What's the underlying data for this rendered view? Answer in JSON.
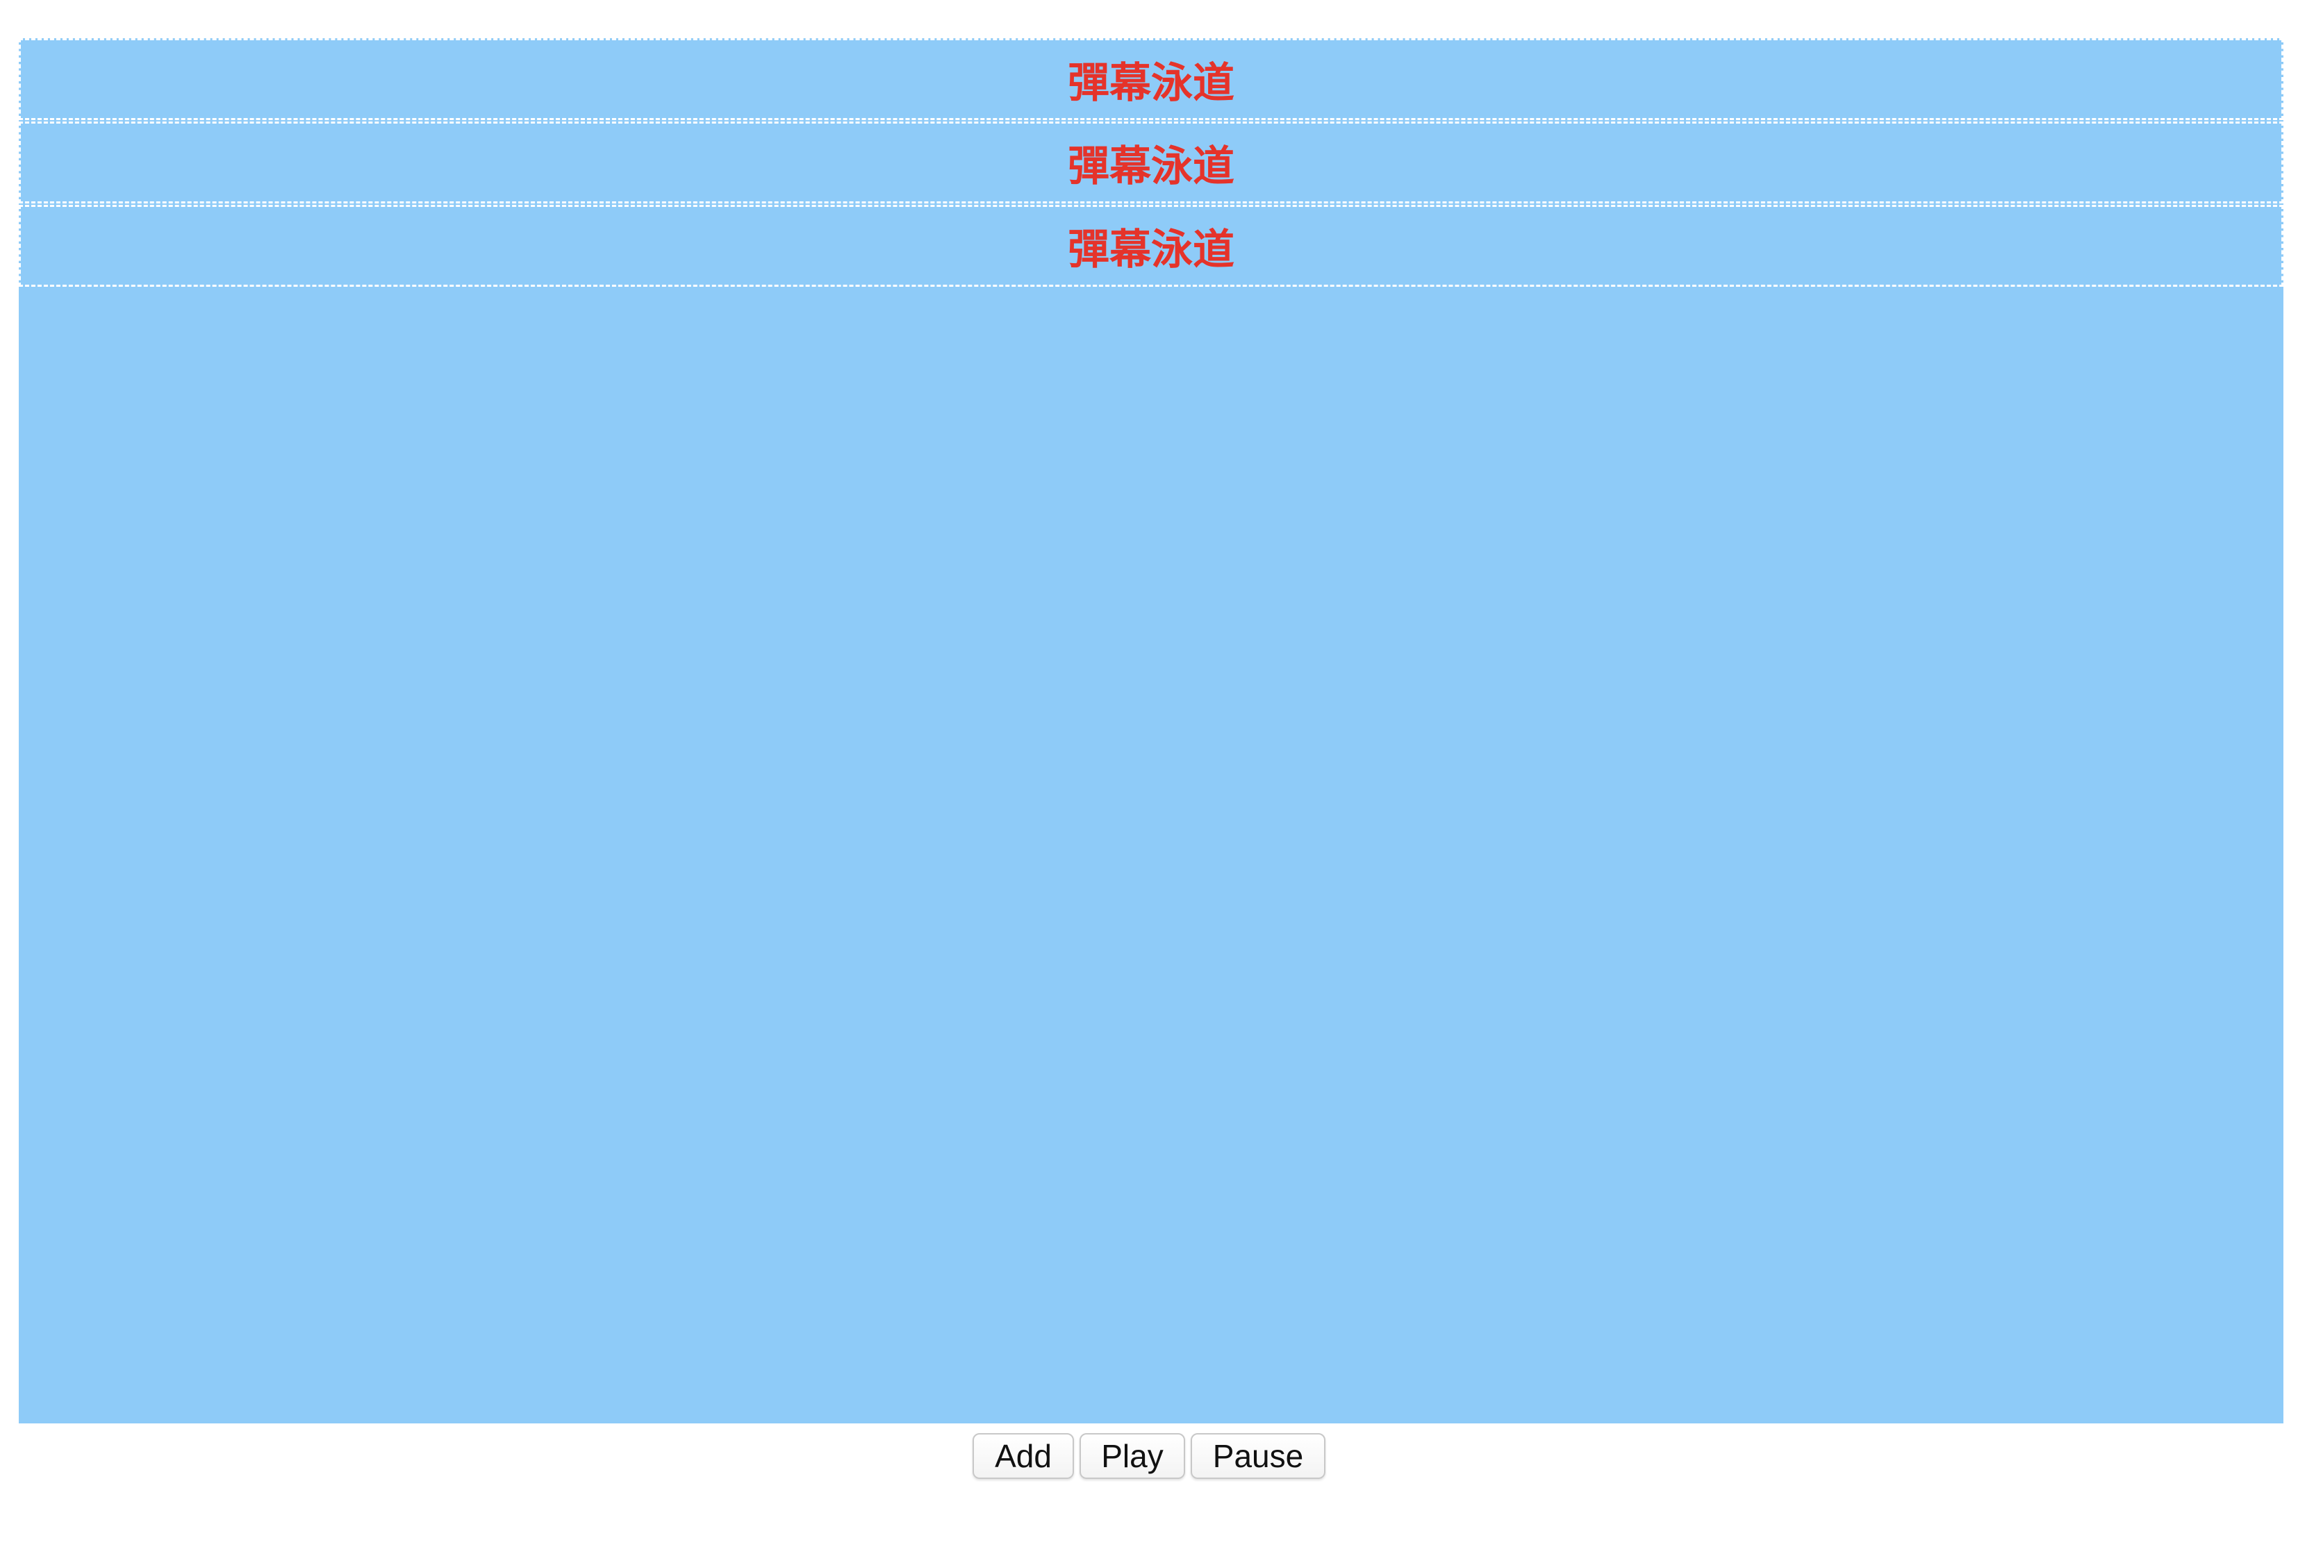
{
  "danmaku": {
    "background_color": "#8ecbf8",
    "lane_text_color": "#e5332a",
    "lanes": [
      {
        "label": "彈幕泳道"
      },
      {
        "label": "彈幕泳道"
      },
      {
        "label": "彈幕泳道"
      }
    ]
  },
  "controls": {
    "add_label": "Add",
    "play_label": "Play",
    "pause_label": "Pause"
  }
}
